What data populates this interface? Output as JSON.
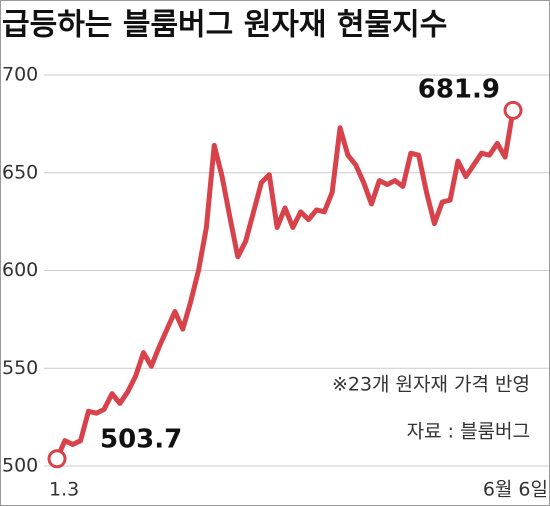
{
  "chart_data": {
    "type": "line",
    "title": "급등하는 블룸버그 원자재 현물지수",
    "notes": [
      "※23개 원자재 가격 반영",
      "자료 : 블룸버그"
    ],
    "categories": [
      "1.3",
      null,
      null,
      null,
      null,
      null,
      null,
      null,
      null,
      null,
      null,
      null,
      null,
      null,
      null,
      null,
      null,
      null,
      null,
      null,
      null,
      null,
      null,
      null,
      null,
      null,
      null,
      null,
      null,
      null,
      null,
      null,
      null,
      null,
      null,
      null,
      null,
      null,
      null,
      null,
      null,
      null,
      null,
      null,
      null,
      null,
      null,
      null,
      null,
      null,
      null,
      null,
      null,
      null,
      null,
      null,
      null,
      null,
      "6월 6일"
    ],
    "values": [
      503.7,
      513,
      511,
      513,
      528,
      527,
      529,
      537,
      532,
      538,
      546,
      558,
      551,
      561,
      570,
      579,
      570,
      584,
      600,
      622,
      664,
      648,
      627,
      607,
      615,
      630,
      645,
      649,
      622,
      632,
      622,
      630,
      626,
      631,
      630,
      640,
      673,
      659,
      654,
      645,
      634,
      646,
      644,
      646,
      643,
      660,
      659,
      640,
      624,
      635,
      636,
      656,
      648,
      654,
      660,
      659,
      665,
      658,
      681.9
    ],
    "color": "#d8434b",
    "ylim": [
      500,
      700
    ],
    "yticks": [
      500,
      550,
      600,
      650,
      700
    ],
    "grid": true
  }
}
